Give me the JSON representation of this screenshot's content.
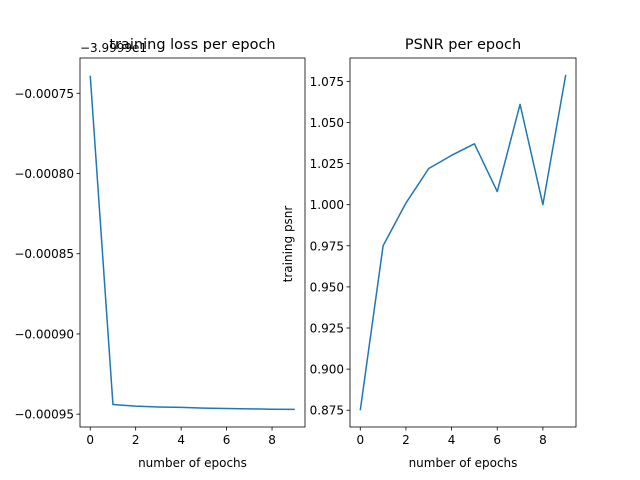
{
  "chart_data": [
    {
      "type": "line",
      "title": "training loss per epoch",
      "xlabel": "number of epochs",
      "ylabel": "",
      "offset_label": "−3.9999e1",
      "x": [
        0,
        1,
        2,
        3,
        4,
        5,
        6,
        7,
        8,
        9
      ],
      "series": [
        {
          "values": [
            -0.000739,
            -0.000944,
            -0.000945,
            -0.0009455,
            -0.0009458,
            -0.0009462,
            -0.0009465,
            -0.0009467,
            -0.0009469,
            -0.000947
          ]
        }
      ],
      "xlim": [
        -0.45,
        9.45
      ],
      "ylim": [
        -0.000958,
        -0.000728
      ],
      "xticks": [
        0,
        2,
        4,
        6,
        8
      ],
      "xtick_labels": [
        "0",
        "2",
        "4",
        "6",
        "8"
      ],
      "yticks": [
        -0.00095,
        -0.0009,
        -0.00085,
        -0.0008,
        -0.00075
      ],
      "ytick_labels": [
        "−0.00095",
        "−0.00090",
        "−0.00085",
        "−0.00080",
        "−0.00075"
      ],
      "grid": false,
      "color": "#1f77b4"
    },
    {
      "type": "line",
      "title": "PSNR per epoch",
      "xlabel": "number of epochs",
      "ylabel": "training psnr",
      "x": [
        0,
        1,
        2,
        3,
        4,
        5,
        6,
        7,
        8,
        9
      ],
      "series": [
        {
          "values": [
            0.875,
            0.975,
            1.001,
            1.022,
            1.03,
            1.037,
            1.008,
            1.061,
            1.0,
            1.079
          ]
        }
      ],
      "xlim": [
        -0.45,
        9.45
      ],
      "ylim": [
        0.8648,
        1.0892
      ],
      "xticks": [
        0,
        2,
        4,
        6,
        8
      ],
      "xtick_labels": [
        "0",
        "2",
        "4",
        "6",
        "8"
      ],
      "yticks": [
        0.875,
        0.9,
        0.925,
        0.95,
        0.975,
        1.0,
        1.025,
        1.05,
        1.075
      ],
      "ytick_labels": [
        "0.875",
        "0.900",
        "0.925",
        "0.950",
        "0.975",
        "1.000",
        "1.025",
        "1.050",
        "1.075"
      ],
      "grid": false,
      "color": "#1f77b4"
    }
  ]
}
